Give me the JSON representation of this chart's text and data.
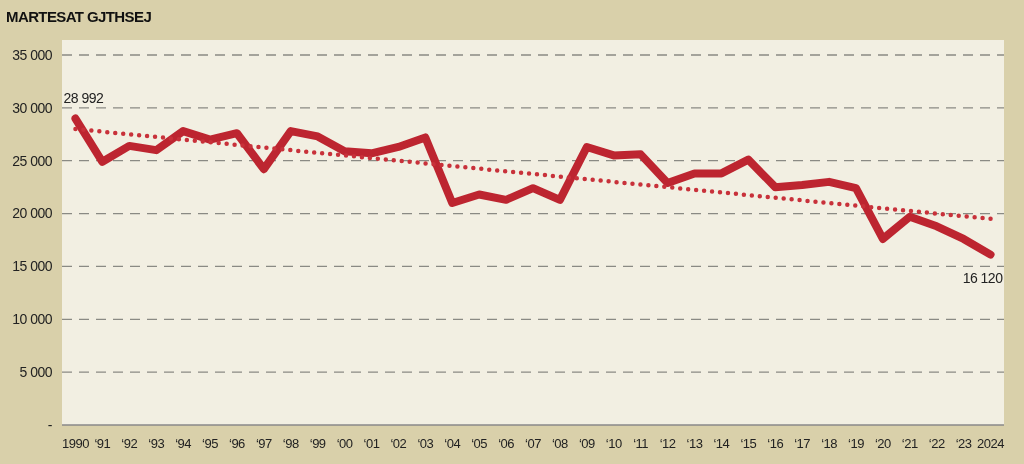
{
  "chart_data": {
    "type": "line",
    "title": "MARTESAT GJTHSEJ",
    "categories": [
      "1990",
      "‘91",
      "‘92",
      "‘93",
      "‘94",
      "‘95",
      "‘96",
      "‘97",
      "‘98",
      "‘99",
      "‘00",
      "‘01",
      "‘02",
      "‘03",
      "‘04",
      "‘05",
      "‘06",
      "‘07",
      "‘08",
      "‘09",
      "‘10",
      "‘11",
      "‘12",
      "‘13",
      "‘14",
      "‘15",
      "‘16",
      "‘17",
      "‘18",
      "‘19",
      "‘20",
      "‘21",
      "‘22",
      "‘23",
      "2024"
    ],
    "series": [
      {
        "color": "#bd2530",
        "line_style": "solid",
        "values": [
          28992,
          24900,
          26400,
          26000,
          27800,
          27000,
          27600,
          24200,
          27800,
          27300,
          25900,
          25700,
          26300,
          27200,
          21000,
          21800,
          21300,
          22400,
          21300,
          26300,
          25500,
          25600,
          22900,
          23800,
          23800,
          25100,
          22500,
          22700,
          23000,
          22400,
          17600,
          19700,
          18800,
          17600,
          16120
        ]
      },
      {
        "color": "#c8313a",
        "line_style": "dotted",
        "values": [
          28000,
          27750,
          27500,
          27250,
          27000,
          26750,
          26500,
          26250,
          26000,
          25750,
          25500,
          25250,
          25000,
          24750,
          24500,
          24250,
          24000,
          23750,
          23500,
          23250,
          23000,
          22750,
          22500,
          22250,
          22000,
          21750,
          21500,
          21250,
          21000,
          20750,
          20500,
          20250,
          20000,
          19750,
          19500
        ]
      }
    ],
    "ylim": [
      0,
      35000
    ],
    "yticks": [
      {
        "value": 0,
        "label": "-"
      },
      {
        "value": 5000,
        "label": "5 000"
      },
      {
        "value": 10000,
        "label": "10 000"
      },
      {
        "value": 15000,
        "label": "15 000"
      },
      {
        "value": 20000,
        "label": "20 000"
      },
      {
        "value": 25000,
        "label": "25 000"
      },
      {
        "value": 30000,
        "label": "30 000"
      },
      {
        "value": 35000,
        "label": "35 000"
      }
    ],
    "grid": "y",
    "marker": "none",
    "annotations": [
      {
        "text": "28 992",
        "x": "1990",
        "y": 28992
      },
      {
        "text": "16 120",
        "x": "2024",
        "y": 16120
      }
    ]
  }
}
